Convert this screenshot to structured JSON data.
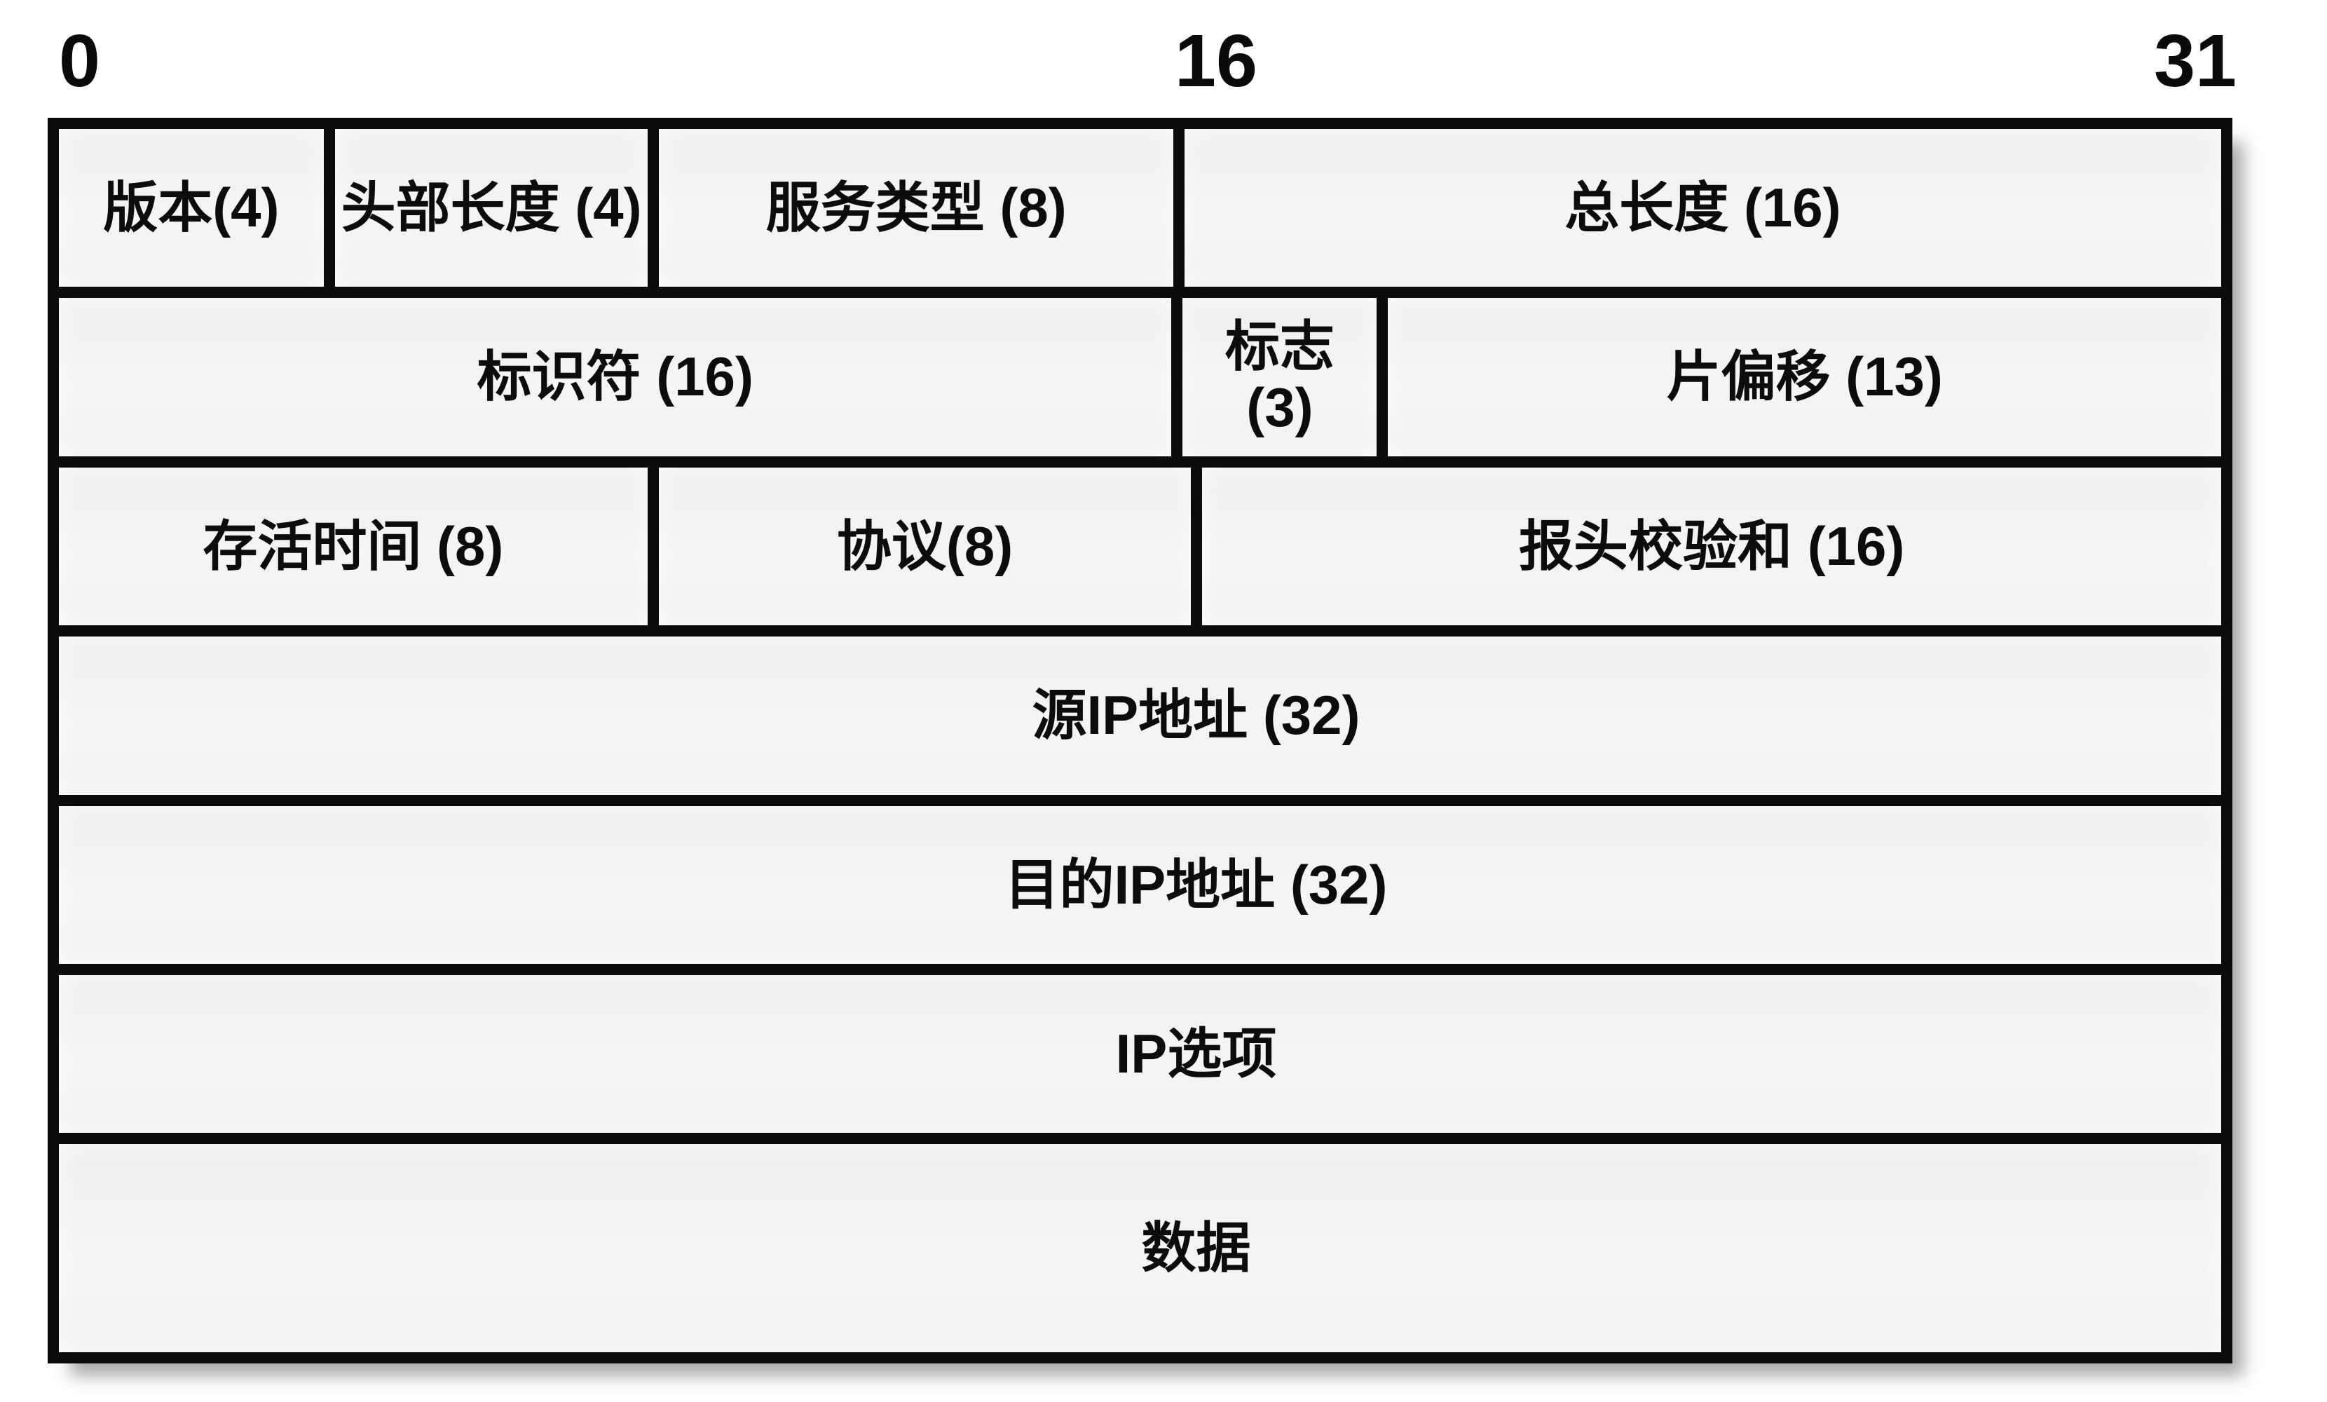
{
  "diagram": {
    "bit_ruler": {
      "start": "0",
      "middle": "16",
      "end": "31"
    },
    "rows": [
      {
        "cells": [
          {
            "label": "版本(4)"
          },
          {
            "label": "头部长度 (4)"
          },
          {
            "label": "服务类型 (8)"
          },
          {
            "label": "总长度 (16)"
          }
        ]
      },
      {
        "cells": [
          {
            "label": "标识符 (16)"
          },
          {
            "label": "标志",
            "label2": "(3)"
          },
          {
            "label": "片偏移 (13)"
          }
        ]
      },
      {
        "cells": [
          {
            "label": "存活时间 (8)"
          },
          {
            "label": "协议(8)"
          },
          {
            "label": "报头校验和 (16)"
          }
        ]
      },
      {
        "cells": [
          {
            "label": "源IP地址 (32)"
          }
        ]
      },
      {
        "cells": [
          {
            "label": "目的IP地址 (32)"
          }
        ]
      },
      {
        "cells": [
          {
            "label": "IP选项"
          }
        ]
      },
      {
        "cells": [
          {
            "label": "数据"
          }
        ]
      }
    ],
    "colors": {
      "border": "#0b0b0b",
      "cell_fill": "#f3f2f0",
      "text": "#0c0c0c",
      "page_background": "#ffffff"
    }
  }
}
